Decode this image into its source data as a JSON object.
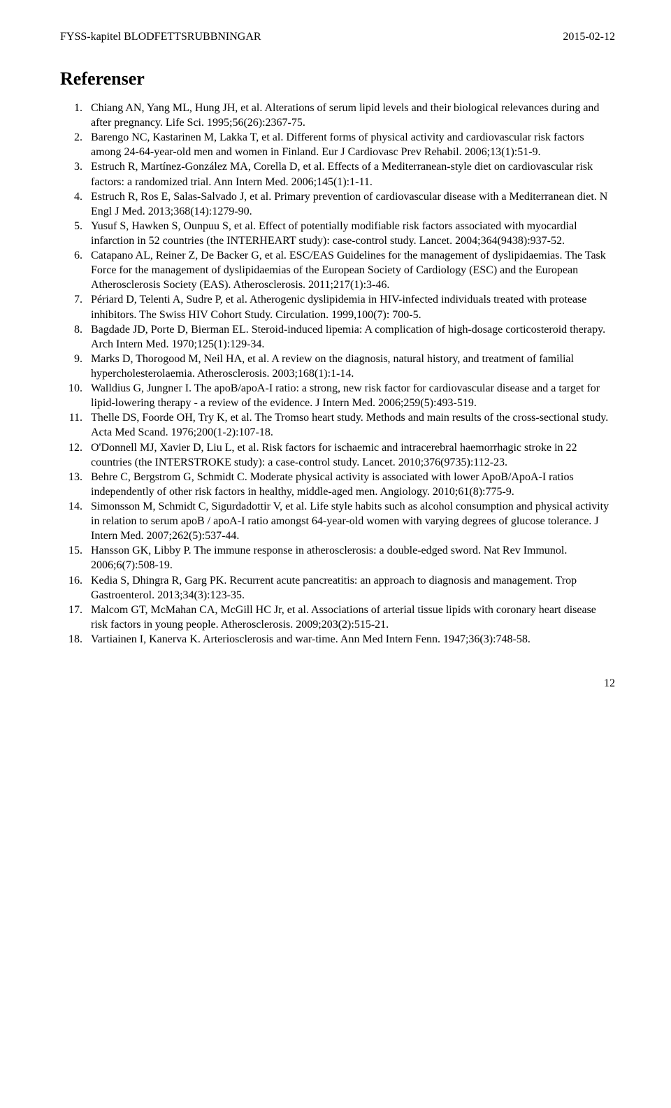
{
  "header": {
    "left": "FYSS-kapitel BLODFETTSRUBBNINGAR",
    "right": "2015-02-12"
  },
  "section_title": "Referenser",
  "references": [
    "Chiang AN, Yang ML, Hung JH, et al. Alterations of serum lipid levels and their biological relevances during and after pregnancy. Life Sci. 1995;56(26):2367-75.",
    "Barengo NC, Kastarinen M, Lakka T, et al. Different forms of physical activity and cardiovascular risk factors among 24-64-year-old men and women in Finland. Eur J Cardiovasc Prev Rehabil. 2006;13(1):51-9.",
    "Estruch R, Martínez-González MA, Corella D, et al. Effects of a Mediterranean-style diet on cardiovascular risk factors: a randomized trial. Ann Intern Med. 2006;145(1):1-11.",
    "Estruch R, Ros E, Salas-Salvado J, et al. Primary prevention of cardiovascular disease with a Mediterranean diet. N Engl J Med. 2013;368(14):1279-90.",
    "Yusuf S, Hawken S, Ounpuu S, et al. Effect of potentially modifiable risk factors associated with myocardial infarction in 52 countries (the INTERHEART study): case-control study. Lancet. 2004;364(9438):937-52.",
    "Catapano AL, Reiner Z, De Backer G, et al. ESC/EAS Guidelines for the management of dyslipidaemias. The Task Force for the management of dyslipidaemias of the European Society of Cardiology (ESC) and the European Atherosclerosis Society (EAS). Atherosclerosis. 2011;217(1):3-46.",
    "Périard D, Telenti A, Sudre P, et al. Atherogenic dyslipidemia in HIV-infected individuals treated with protease inhibitors. The Swiss HIV Cohort Study. Circulation. 1999,100(7): 700-5.",
    "Bagdade JD, Porte D, Bierman EL. Steroid-induced lipemia: A complication of high-dosage corticosteroid therapy. Arch Intern Med. 1970;125(1):129-34.",
    "Marks D, Thorogood M, Neil HA, et al. A review on the diagnosis, natural history, and treatment of familial hypercholesterolaemia. Atherosclerosis. 2003;168(1):1-14.",
    "Walldius G, Jungner I. The apoB/apoA-I ratio: a strong, new risk factor for cardiovascular disease and a target for lipid-lowering therapy - a review of the evidence. J Intern Med. 2006;259(5):493-519.",
    "Thelle DS, Foorde OH, Try K, et al. The Tromso heart study. Methods and main results of the cross-sectional study. Acta Med Scand. 1976;200(1-2):107-18.",
    "O'Donnell MJ, Xavier D, Liu L, et al. Risk factors for ischaemic and intracerebral haemorrhagic stroke in 22 countries (the INTERSTROKE study): a case-control study. Lancet. 2010;376(9735):112-23.",
    "Behre C, Bergstrom G, Schmidt C. Moderate physical activity is associated with lower ApoB/ApoA-I ratios independently of other risk factors in healthy, middle-aged men. Angiology. 2010;61(8):775-9.",
    "Simonsson M, Schmidt C, Sigurdadottir V, et al. Life style habits such as alcohol consumption and physical activity in relation to serum apoB / apoA-I ratio amongst 64-year-old women with varying degrees of glucose tolerance. J Intern Med. 2007;262(5):537-44.",
    "Hansson GK, Libby P. The immune response in atherosclerosis: a double-edged sword. Nat Rev Immunol. 2006;6(7):508-19.",
    "Kedia S, Dhingra R, Garg PK. Recurrent acute pancreatitis: an approach to diagnosis and management. Trop Gastroenterol. 2013;34(3):123-35.",
    "Malcom GT, McMahan CA, McGill HC Jr, et al. Associations of arterial tissue lipids with coronary heart disease risk factors in young people. Atherosclerosis. 2009;203(2):515-21.",
    "Vartiainen I, Kanerva K. Arteriosclerosis and war-time. Ann Med Intern Fenn. 1947;36(3):748-58."
  ],
  "page_number": "12"
}
